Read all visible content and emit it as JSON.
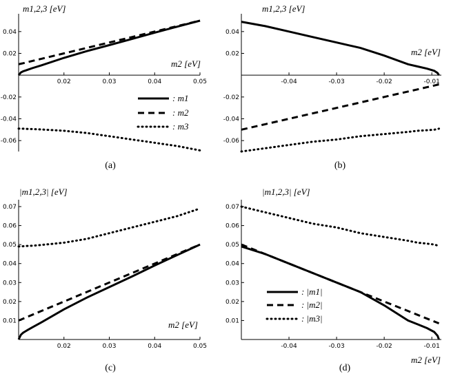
{
  "panels": [
    {
      "caption": "(a)",
      "ylabel": "m1,2,3 [eV]",
      "xlabel": "m2 [eV]"
    },
    {
      "caption": "(b)",
      "ylabel": "m1,2,3 [eV]",
      "xlabel": "m2 [eV]"
    },
    {
      "caption": "(c)",
      "ylabel": "|m1,2,3| [eV]",
      "xlabel": "m2 [eV]"
    },
    {
      "caption": "(d)",
      "ylabel": "|m1,2,3| [eV]",
      "xlabel": "m2 [eV]"
    }
  ],
  "legend_ab": [
    ": m1",
    ": m2",
    ": m3"
  ],
  "legend_cd": [
    ": |m1|",
    ": |m2|",
    ": |m3|"
  ],
  "chart_data": [
    {
      "type": "line",
      "caption": "(a)",
      "xlabel": "m2 [eV]",
      "ylabel": "m1,2,3 [eV]",
      "xlim": [
        0.01,
        0.05
      ],
      "ylim": [
        -0.07,
        0.05
      ],
      "xticks": [
        "0.02",
        "0.03",
        "0.04",
        "0.05"
      ],
      "yticks": [
        "-0.06",
        "-0.04",
        "-0.02",
        "0.02",
        "0.04"
      ],
      "x": [
        0.01,
        0.0105,
        0.011,
        0.0115,
        0.012,
        0.013,
        0.015,
        0.02,
        0.025,
        0.03,
        0.035,
        0.04,
        0.045,
        0.05
      ],
      "series": [
        {
          "name": "m1",
          "style": "solid",
          "values": [
            0.0,
            0.0025,
            0.0036,
            0.0043,
            0.005,
            0.0064,
            0.009,
            0.0159,
            0.022,
            0.0276,
            0.0332,
            0.039,
            0.0445,
            0.05
          ]
        },
        {
          "name": "m2",
          "style": "dashed",
          "values": [
            0.01,
            0.0105,
            0.011,
            0.0115,
            0.012,
            0.013,
            0.015,
            0.02,
            0.025,
            0.03,
            0.035,
            0.04,
            0.045,
            0.05
          ]
        },
        {
          "name": "m3",
          "style": "dotted",
          "values": [
            -0.049,
            -0.049,
            -0.0491,
            -0.0492,
            -0.0493,
            -0.0494,
            -0.0498,
            -0.051,
            -0.053,
            -0.056,
            -0.059,
            -0.062,
            -0.065,
            -0.069
          ]
        }
      ]
    },
    {
      "type": "line",
      "caption": "(b)",
      "xlabel": "m2 [eV]",
      "ylabel": "m1,2,3 [eV]",
      "xlim": [
        -0.05,
        -0.008
      ],
      "ylim": [
        -0.07,
        0.05
      ],
      "xticks": [
        "-0.04",
        "-0.03",
        "-0.02",
        "-0.01"
      ],
      "yticks": [
        "-0.06",
        "-0.04",
        "-0.02",
        "0.02",
        "0.04"
      ],
      "x": [
        -0.05,
        -0.045,
        -0.04,
        -0.035,
        -0.03,
        -0.025,
        -0.02,
        -0.015,
        -0.013,
        -0.011,
        -0.0095,
        -0.0088,
        -0.0085
      ],
      "series": [
        {
          "name": "m1",
          "style": "solid",
          "values": [
            0.049,
            0.045,
            0.04,
            0.035,
            0.03,
            0.025,
            0.018,
            0.01,
            0.008,
            0.006,
            0.004,
            0.002,
            0.0
          ]
        },
        {
          "name": "m2",
          "style": "dashed",
          "values": [
            -0.05,
            -0.045,
            -0.04,
            -0.035,
            -0.03,
            -0.025,
            -0.02,
            -0.015,
            -0.013,
            -0.011,
            -0.0095,
            -0.0088,
            -0.0085
          ]
        },
        {
          "name": "m3",
          "style": "dotted",
          "values": [
            -0.07,
            -0.067,
            -0.064,
            -0.061,
            -0.059,
            -0.056,
            -0.054,
            -0.052,
            -0.051,
            -0.0505,
            -0.05,
            -0.0495,
            -0.049
          ]
        }
      ]
    },
    {
      "type": "line",
      "caption": "(c)",
      "xlabel": "m2 [eV]",
      "ylabel": "|m1,2,3| [eV]",
      "xlim": [
        0.01,
        0.05
      ],
      "ylim": [
        0,
        0.07
      ],
      "xticks": [
        "0.02",
        "0.03",
        "0.04",
        "0.05"
      ],
      "yticks": [
        "0.01",
        "0.02",
        "0.03",
        "0.04",
        "0.05",
        "0.06",
        "0.07"
      ],
      "x": [
        0.01,
        0.0105,
        0.011,
        0.0115,
        0.012,
        0.013,
        0.015,
        0.02,
        0.025,
        0.03,
        0.035,
        0.04,
        0.045,
        0.05
      ],
      "series": [
        {
          "name": "|m1|",
          "style": "solid",
          "values": [
            0.0,
            0.0025,
            0.0036,
            0.0043,
            0.005,
            0.0064,
            0.009,
            0.0159,
            0.022,
            0.0276,
            0.0332,
            0.039,
            0.0445,
            0.05
          ]
        },
        {
          "name": "|m2|",
          "style": "dashed",
          "values": [
            0.01,
            0.0105,
            0.011,
            0.0115,
            0.012,
            0.013,
            0.015,
            0.02,
            0.025,
            0.03,
            0.035,
            0.04,
            0.045,
            0.05
          ]
        },
        {
          "name": "|m3|",
          "style": "dotted",
          "values": [
            0.049,
            0.049,
            0.0491,
            0.0492,
            0.0493,
            0.0494,
            0.0498,
            0.051,
            0.053,
            0.056,
            0.059,
            0.062,
            0.065,
            0.069
          ]
        }
      ]
    },
    {
      "type": "line",
      "caption": "(d)",
      "xlabel": "m2 [eV]",
      "ylabel": "|m1,2,3| [eV]",
      "xlim": [
        -0.05,
        -0.008
      ],
      "ylim": [
        0,
        0.07
      ],
      "xticks": [
        "-0.04",
        "-0.03",
        "-0.02",
        "-0.01"
      ],
      "yticks": [
        "0.01",
        "0.02",
        "0.03",
        "0.04",
        "0.05",
        "0.06",
        "0.07"
      ],
      "x": [
        -0.05,
        -0.045,
        -0.04,
        -0.035,
        -0.03,
        -0.025,
        -0.02,
        -0.015,
        -0.013,
        -0.011,
        -0.0095,
        -0.0088,
        -0.0085
      ],
      "series": [
        {
          "name": "|m1|",
          "style": "solid",
          "values": [
            0.049,
            0.045,
            0.04,
            0.035,
            0.03,
            0.025,
            0.018,
            0.01,
            0.008,
            0.006,
            0.004,
            0.002,
            0.0
          ]
        },
        {
          "name": "|m2|",
          "style": "dashed",
          "values": [
            0.05,
            0.045,
            0.04,
            0.035,
            0.03,
            0.025,
            0.02,
            0.015,
            0.013,
            0.011,
            0.0095,
            0.0088,
            0.0085
          ]
        },
        {
          "name": "|m3|",
          "style": "dotted",
          "values": [
            0.07,
            0.067,
            0.064,
            0.061,
            0.059,
            0.056,
            0.054,
            0.052,
            0.051,
            0.0505,
            0.05,
            0.0495,
            0.049
          ]
        }
      ]
    }
  ]
}
